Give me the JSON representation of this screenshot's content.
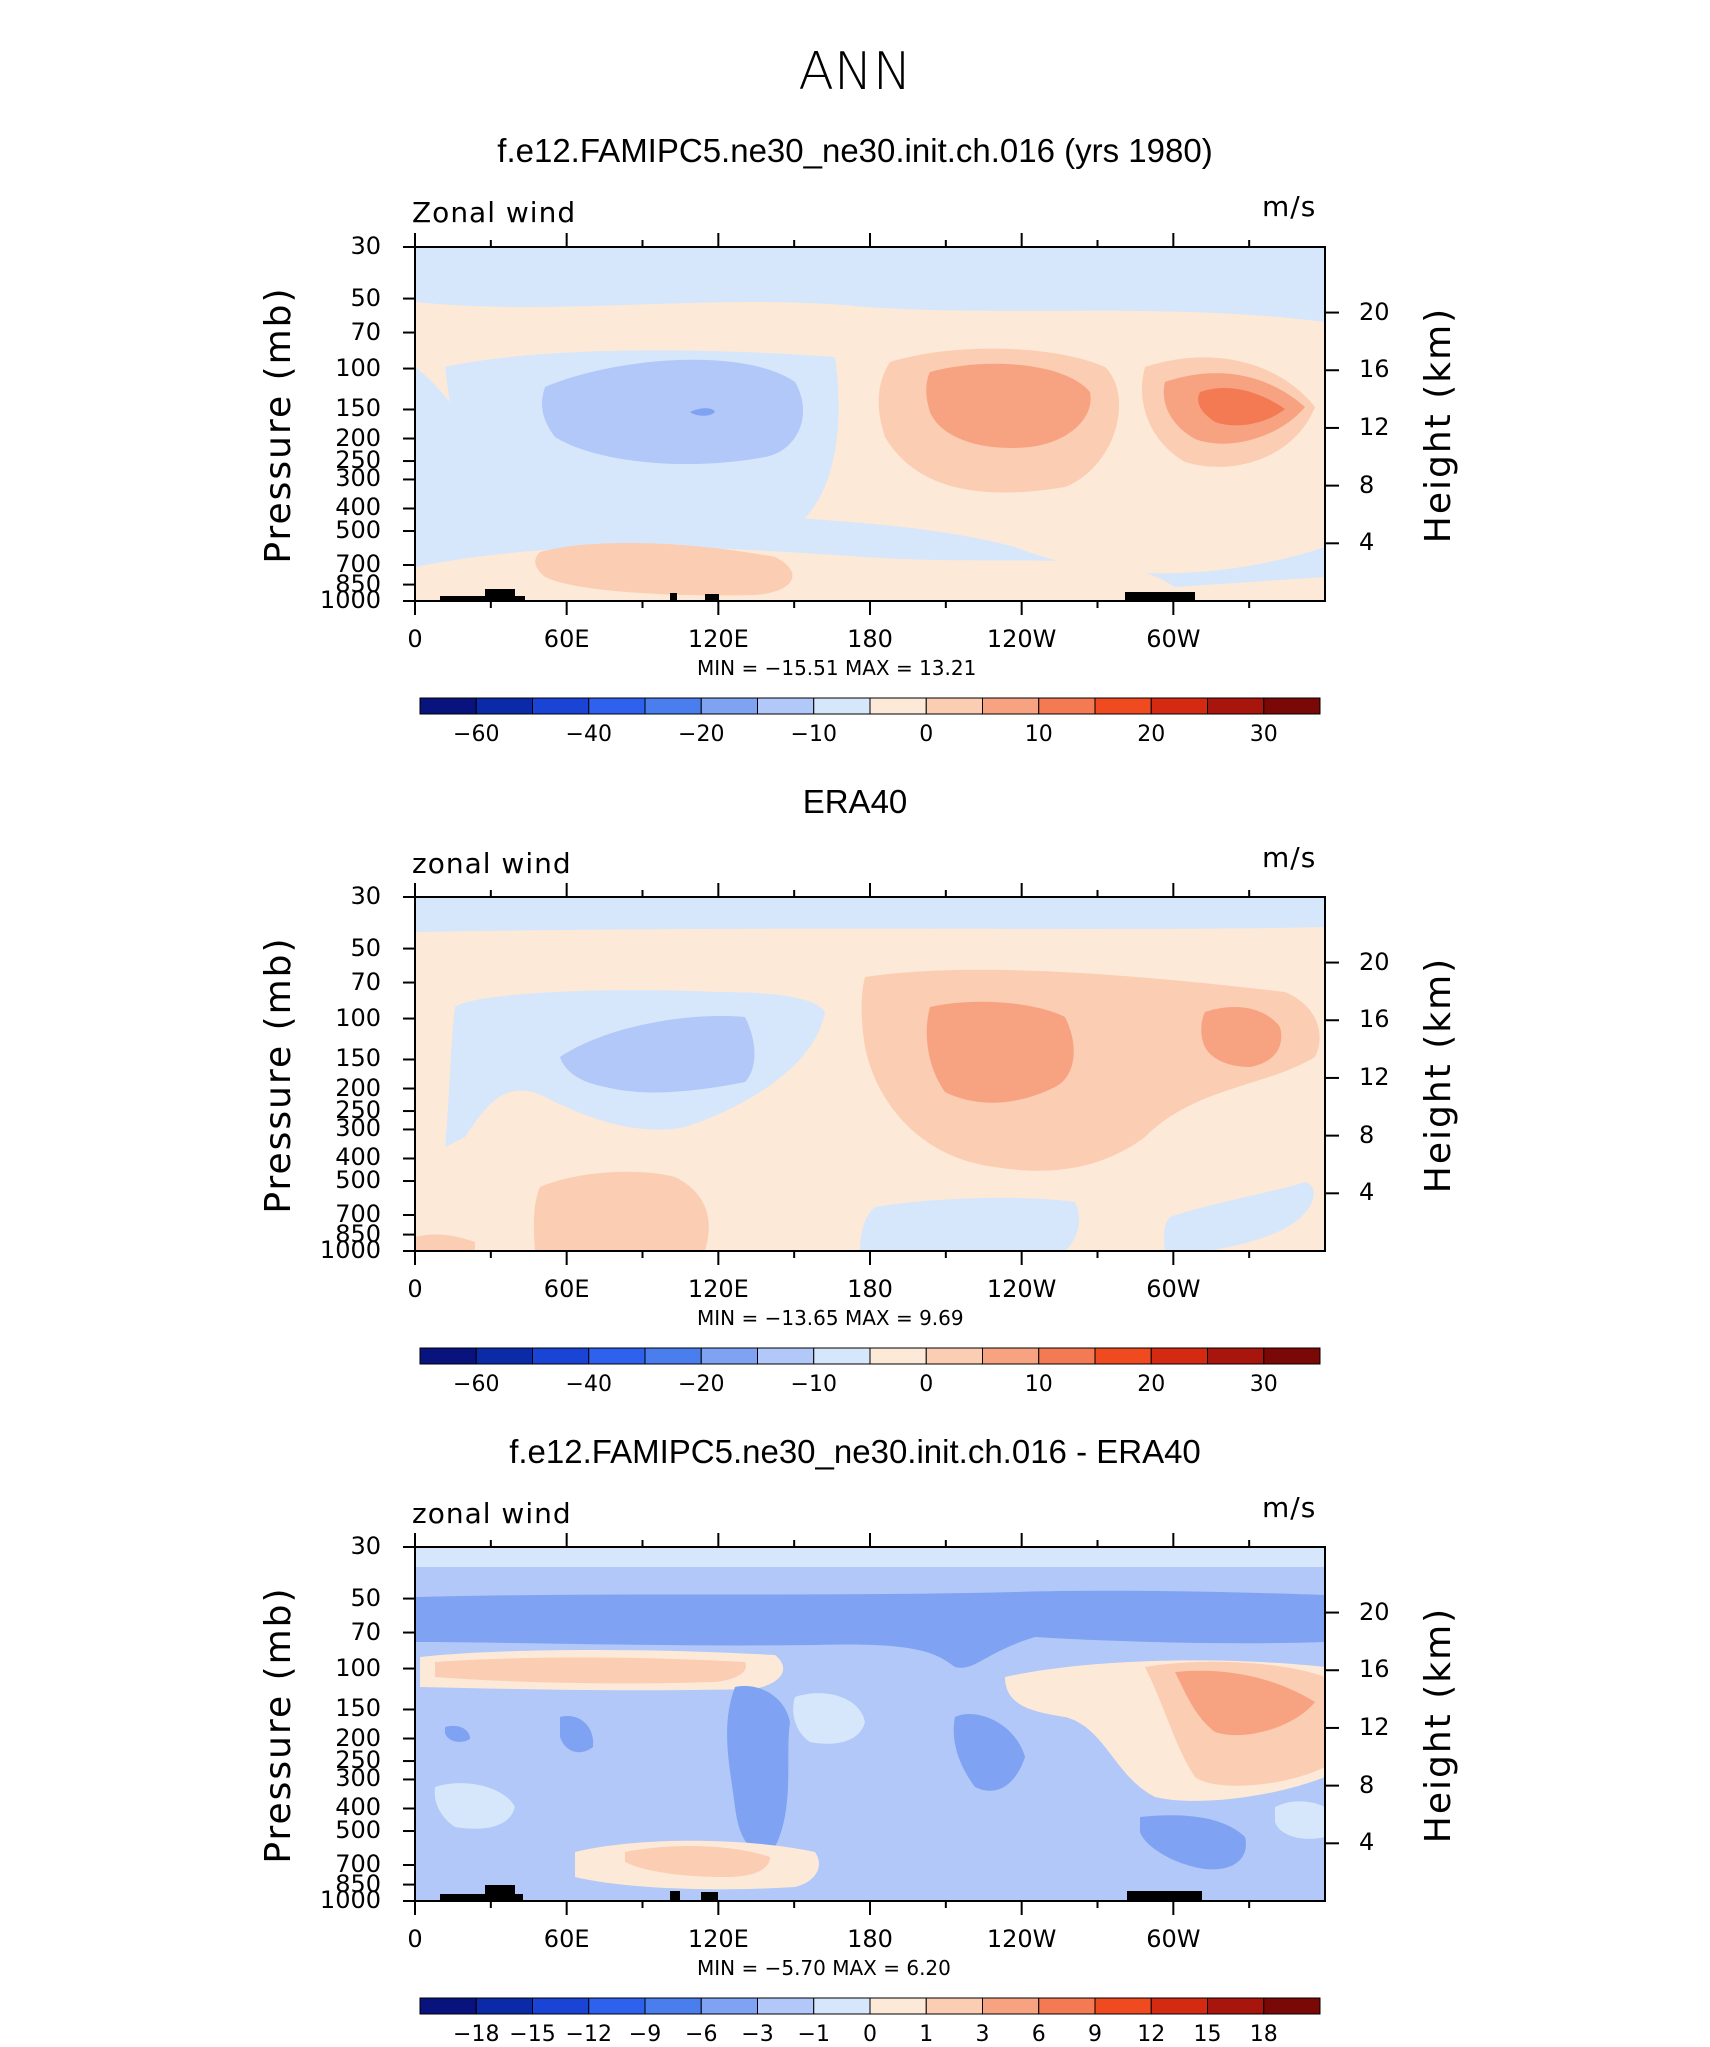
{
  "figure_title": "ANN",
  "panels": [
    {
      "title": "f.e12.FAMIPC5.ne30_ne30.init.ch.016 (yrs 1980)",
      "label_left": "Zonal wind",
      "label_right": "m/s",
      "minmax": "MIN =  −15.51   MAX =   13.21",
      "colorbar_ticks": [
        "−60",
        "−40",
        "−20",
        "−10",
        "0",
        "10",
        "20",
        "30"
      ]
    },
    {
      "title": "ERA40",
      "label_left": "zonal wind",
      "label_right": "m/s",
      "minmax": "MIN =  −13.65   MAX =    9.69",
      "colorbar_ticks": [
        "−60",
        "−40",
        "−20",
        "−10",
        "0",
        "10",
        "20",
        "30"
      ]
    },
    {
      "title": "f.e12.FAMIPC5.ne30_ne30.init.ch.016 - ERA40",
      "label_left": "zonal wind",
      "label_right": "m/s",
      "minmax": "MIN =    −5.70   MAX =    6.20",
      "colorbar_ticks": [
        "−18",
        "−15",
        "−12",
        "−9",
        "−6",
        "−3",
        "−1",
        "0",
        "1",
        "3",
        "6",
        "9",
        "12",
        "15",
        "18"
      ]
    }
  ],
  "axes": {
    "y_left_title": "Pressure (mb)",
    "y_right_title": "Height (km)",
    "pressure_ticks": [
      "30",
      "50",
      "70",
      "100",
      "150",
      "200",
      "250",
      "300",
      "400",
      "500",
      "700",
      "850",
      "1000"
    ],
    "height_ticks": [
      "20",
      "16",
      "12",
      "8",
      "4"
    ],
    "lon_ticks": [
      "0",
      "60E",
      "120E",
      "180",
      "120W",
      "60W"
    ]
  },
  "chart_data": [
    {
      "type": "heatmap",
      "title": "f.e12.FAMIPC5.ne30_ne30.init.ch.016 (yrs 1980)",
      "variable": "Zonal wind",
      "units": "m/s",
      "x_ticks": [
        "0",
        "60E",
        "120E",
        "180",
        "120W",
        "60W"
      ],
      "y_ticks_pressure_mb": [
        30,
        50,
        70,
        100,
        150,
        200,
        250,
        300,
        400,
        500,
        700,
        850,
        1000
      ],
      "y_ticks_height_km": [
        20,
        16,
        12,
        8,
        4
      ],
      "min": -15.51,
      "max": 13.21,
      "colorbar_levels": [
        -60,
        -40,
        -20,
        -10,
        0,
        10,
        20,
        30
      ]
    },
    {
      "type": "heatmap",
      "title": "ERA40",
      "variable": "zonal wind",
      "units": "m/s",
      "x_ticks": [
        "0",
        "60E",
        "120E",
        "180",
        "120W",
        "60W"
      ],
      "y_ticks_pressure_mb": [
        30,
        50,
        70,
        100,
        150,
        200,
        250,
        300,
        400,
        500,
        700,
        850,
        1000
      ],
      "y_ticks_height_km": [
        20,
        16,
        12,
        8,
        4
      ],
      "min": -13.65,
      "max": 9.69,
      "colorbar_levels": [
        -60,
        -40,
        -20,
        -10,
        0,
        10,
        20,
        30
      ]
    },
    {
      "type": "heatmap",
      "title": "f.e12.FAMIPC5.ne30_ne30.init.ch.016 - ERA40",
      "variable": "zonal wind",
      "units": "m/s",
      "x_ticks": [
        "0",
        "60E",
        "120E",
        "180",
        "120W",
        "60W"
      ],
      "y_ticks_pressure_mb": [
        30,
        50,
        70,
        100,
        150,
        200,
        250,
        300,
        400,
        500,
        700,
        850,
        1000
      ],
      "y_ticks_height_km": [
        20,
        16,
        12,
        8,
        4
      ],
      "min": -5.7,
      "max": 6.2,
      "colorbar_levels": [
        -18,
        -15,
        -12,
        -9,
        -6,
        -3,
        -1,
        0,
        1,
        3,
        6,
        9,
        12,
        15,
        18
      ]
    }
  ],
  "colors": {
    "colorbar": [
      "#08137e",
      "#0b2aa8",
      "#1a44d6",
      "#2e62ee",
      "#4a7eef",
      "#7fa2f3",
      "#b1c8f8",
      "#d6e6fb",
      "#fde9d8",
      "#fbcdb3",
      "#f7a382",
      "#f37a52",
      "#ef4a20",
      "#d42a12",
      "#a8150c",
      "#7a0806"
    ]
  }
}
